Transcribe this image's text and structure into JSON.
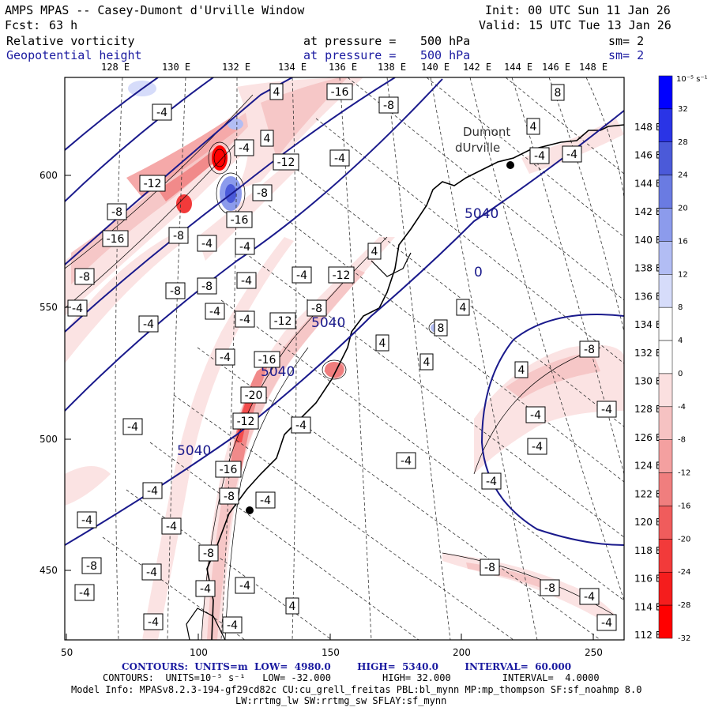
{
  "header": {
    "title": "AMPS MPAS -- Casey-Dumont d'Urville Window",
    "fcst_label": "Fcst:",
    "fcst_value": "63 h",
    "init": "Init: 00 UTC Sun 11 Jan 26",
    "valid": "Valid: 15 UTC Tue 13 Jan 26",
    "field1": {
      "name": "Relative vorticity",
      "pressure_label": "at pressure =",
      "pressure_value": "500 hPa",
      "sm": "sm= 2"
    },
    "field2": {
      "name": "Geopotential height",
      "pressure_label": "at pressure =",
      "pressure_value": "500 hPa",
      "sm": "sm= 2"
    }
  },
  "map": {
    "top_longitudes": [
      "128 E",
      "130 E",
      "132 E",
      "134 E",
      "136 E",
      "138 E",
      "140 E",
      "142 E",
      "144 E",
      "146 E",
      "148 E"
    ],
    "right_longitudes": [
      "148 E",
      "146 E",
      "144 E",
      "142 E",
      "140 E",
      "138 E",
      "136 E",
      "134 E",
      "132 E",
      "130 E",
      "128 E",
      "126 E",
      "124 E",
      "122 E",
      "120 E",
      "118 E",
      "116 E",
      "114 E",
      "112 E"
    ],
    "y_ticks": [
      "600",
      "550",
      "500",
      "450"
    ],
    "x_ticks": [
      "50",
      "100",
      "150",
      "200",
      "250"
    ],
    "station_label_1": "Dumont",
    "station_label_2": "dUrville",
    "height_labels": [
      "5040",
      "5040",
      "5040",
      "5040",
      "0"
    ],
    "vort_labels": [
      "-4",
      "-8",
      "-12",
      "-16",
      "-20",
      "4",
      "8"
    ]
  },
  "colorbar": {
    "units": "10⁻⁵ s⁻¹",
    "labels": [
      "32",
      "28",
      "24",
      "20",
      "16",
      "12",
      "8",
      "4",
      "0",
      "-4",
      "-8",
      "-12",
      "-16",
      "-20",
      "-24",
      "-28",
      "-32"
    ],
    "colors": [
      "#0000ff",
      "#2a34e6",
      "#4b5ad9",
      "#6a7be2",
      "#8c9bec",
      "#b2bdf4",
      "#d6dcfa",
      "#ffffff",
      "#ffffff",
      "#fbe0e0",
      "#f6c2c2",
      "#f4a0a0",
      "#f07e7e",
      "#f05c5c",
      "#f23a3a",
      "#f51d1d",
      "#ff0000"
    ]
  },
  "chart_data": {
    "type": "contour_map",
    "fields": [
      "Relative vorticity (shaded)",
      "Geopotential height (contours)"
    ],
    "height_contours": {
      "units": "m",
      "low": 4980.0,
      "high": 5340.0,
      "interval": 60.0
    },
    "vorticity_contours": {
      "units": "10⁻⁵ s⁻¹",
      "low": -32.0,
      "high": 32.0,
      "interval": 4.0
    },
    "x_range": [
      50,
      262
    ],
    "y_range": [
      420,
      640
    ]
  },
  "footer": {
    "line1": "CONTOURS:  UNITS=m  LOW=  4980.0        HIGH=  5340.0        INTERVAL=  60.000",
    "line2": "CONTOURS:  UNITS=10⁻⁵ s⁻¹   LOW= -32.000         HIGH= 32.000         INTERVAL=  4.0000",
    "line3": "Model Info: MPASv8.2.3-194-gf29cd82c CU:cu_grell_freitas PBL:bl_mynn MP:mp_thompson SF:sf_noahmp 8.0",
    "line4": "LW:rrtmg_lw SW:rrtmg_sw SFLAY:sf_mynn"
  }
}
